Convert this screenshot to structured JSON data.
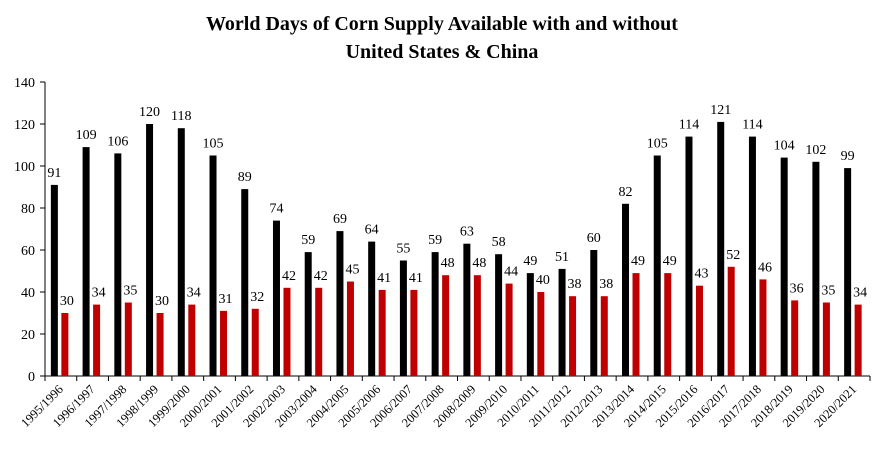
{
  "chart_data": {
    "type": "bar",
    "title": [
      "World Days of Corn Supply Available with and without",
      "United States & China"
    ],
    "xlabel": "",
    "ylabel": "",
    "ylim": [
      0,
      140
    ],
    "yticks": [
      0,
      20,
      40,
      60,
      80,
      100,
      120,
      140
    ],
    "grid": false,
    "legend": "none",
    "categories": [
      "1995/1996",
      "1996/1997",
      "1997/1998",
      "1998/1999",
      "1999/2000",
      "2000/2001",
      "2001/2002",
      "2002/2003",
      "2003/2004",
      "2004/2005",
      "2005/2006",
      "2006/2007",
      "2007/2008",
      "2008/2009",
      "2009/2010",
      "2010/2011",
      "2011/2012",
      "2012/2013",
      "2013/2014",
      "2014/2015",
      "2015/2016",
      "2016/2017",
      "2017/2018",
      "2018/2019",
      "2019/2020",
      "2020/2021"
    ],
    "series": [
      {
        "color": "#000000",
        "values": [
          91,
          109,
          106,
          120,
          118,
          105,
          89,
          74,
          59,
          69,
          64,
          55,
          59,
          63,
          58,
          49,
          51,
          60,
          82,
          105,
          114,
          121,
          114,
          104,
          102,
          99
        ]
      },
      {
        "color": "#c00000",
        "values": [
          30,
          34,
          35,
          30,
          34,
          31,
          32,
          42,
          42,
          45,
          41,
          41,
          48,
          48,
          44,
          40,
          38,
          38,
          49,
          49,
          43,
          52,
          46,
          36,
          35,
          34
        ]
      }
    ]
  }
}
